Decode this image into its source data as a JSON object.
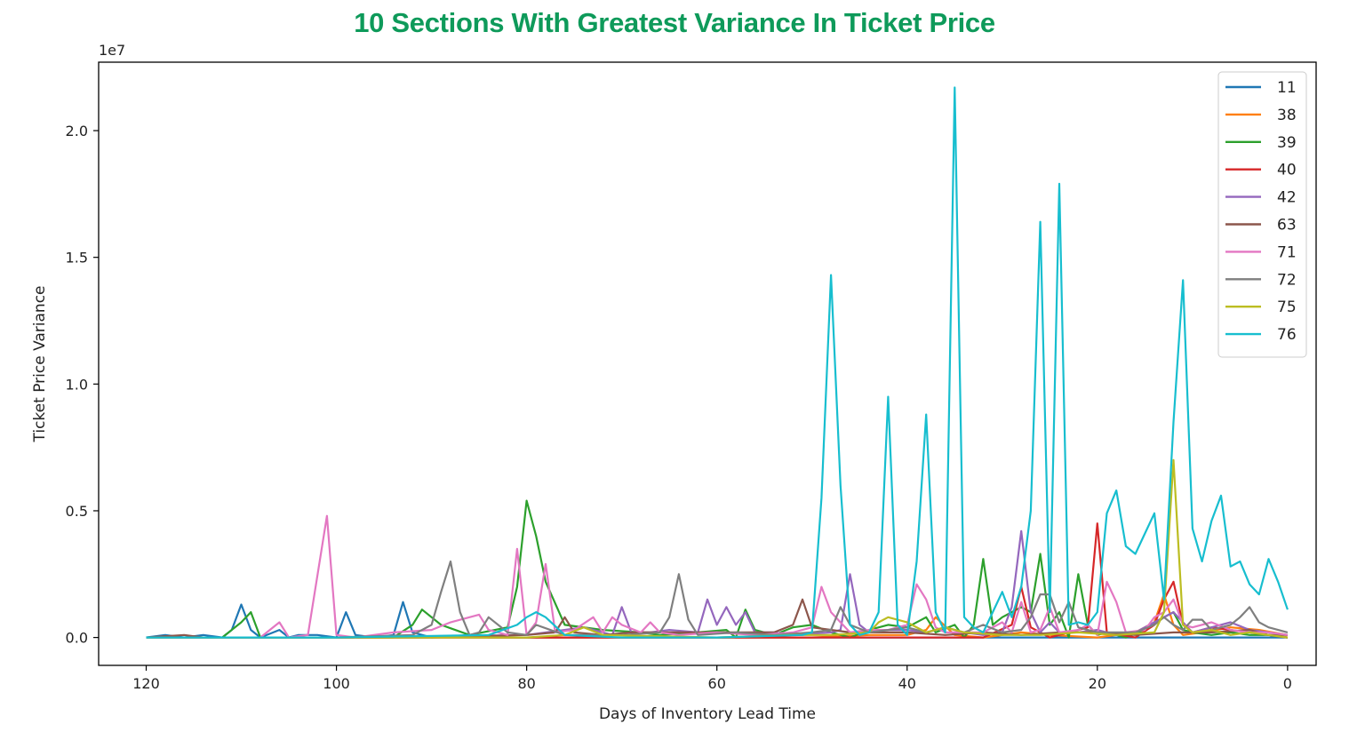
{
  "chart_data": {
    "type": "line",
    "title": "10 Sections With Greatest Variance In Ticket Price",
    "xlabel": "Days of Inventory Lead Time",
    "ylabel": "Ticket Price Variance",
    "y_offset_label": "1e7",
    "xlim": [
      125,
      -3
    ],
    "ylim": [
      -0.11,
      2.27
    ],
    "x_ticks": [
      120,
      100,
      80,
      60,
      40,
      20,
      0
    ],
    "x_tick_labels": [
      "120",
      "100",
      "80",
      "60",
      "40",
      "20",
      "0"
    ],
    "y_ticks": [
      0.0,
      0.5,
      1.0,
      1.5,
      2.0
    ],
    "y_tick_labels": [
      "0.0",
      "0.5",
      "1.0",
      "1.5",
      "2.0"
    ],
    "y_units": "1e7",
    "grid": false,
    "legend_position": "top-right",
    "series": [
      {
        "name": "11",
        "color": "#1f77b4",
        "x": [
          120,
          118,
          116,
          114,
          112,
          111,
          110,
          109,
          108,
          106,
          105,
          104,
          102,
          100,
          99,
          98,
          96,
          94,
          93,
          92,
          90,
          86,
          84,
          80,
          70,
          60,
          50,
          40,
          30,
          20,
          10,
          0
        ],
        "y": [
          0.0,
          0.01,
          0.0,
          0.01,
          0.0,
          0.03,
          0.13,
          0.03,
          0.0,
          0.03,
          0.0,
          0.01,
          0.01,
          0.0,
          0.1,
          0.01,
          0.0,
          0.01,
          0.14,
          0.02,
          0.0,
          0.01,
          0.0,
          0.0,
          0.0,
          0.0,
          0.0,
          0.0,
          0.0,
          0.0,
          0.0,
          0.0
        ]
      },
      {
        "name": "38",
        "color": "#ff7f0e",
        "x": [
          120,
          110,
          100,
          90,
          80,
          70,
          60,
          50,
          44,
          40,
          38,
          37,
          35,
          32,
          28,
          25,
          20,
          16,
          14,
          13,
          12,
          11,
          9,
          6,
          3,
          0
        ],
        "y": [
          0.0,
          0.0,
          0.0,
          0.0,
          0.0,
          0.0,
          0.0,
          0.0,
          0.01,
          0.01,
          0.03,
          0.08,
          0.01,
          0.0,
          0.02,
          0.01,
          0.0,
          0.02,
          0.06,
          0.17,
          0.05,
          0.01,
          0.02,
          0.04,
          0.03,
          0.01
        ]
      },
      {
        "name": "39",
        "color": "#2ca02c",
        "x": [
          120,
          112,
          110,
          109,
          108,
          100,
          94,
          92,
          91,
          89,
          86,
          82,
          81,
          80,
          79,
          78,
          76,
          72,
          68,
          66,
          62,
          59,
          58,
          57,
          56,
          54,
          52,
          50,
          48,
          46,
          44,
          42,
          40,
          38,
          37,
          35,
          34,
          33,
          32,
          31,
          30,
          29,
          28,
          27,
          26,
          25,
          24,
          23,
          22,
          21,
          20,
          19,
          17,
          15,
          14,
          13,
          12,
          11,
          10,
          8,
          6,
          4,
          2,
          0
        ],
        "y": [
          0.0,
          0.0,
          0.06,
          0.1,
          0.0,
          0.0,
          0.0,
          0.05,
          0.11,
          0.05,
          0.01,
          0.04,
          0.2,
          0.54,
          0.4,
          0.22,
          0.05,
          0.03,
          0.02,
          0.01,
          0.02,
          0.03,
          0.0,
          0.11,
          0.03,
          0.01,
          0.04,
          0.05,
          0.02,
          0.0,
          0.03,
          0.05,
          0.04,
          0.08,
          0.02,
          0.05,
          0.0,
          0.05,
          0.31,
          0.05,
          0.08,
          0.1,
          0.12,
          0.1,
          0.33,
          0.05,
          0.1,
          0.0,
          0.25,
          0.05,
          0.01,
          0.02,
          0.0,
          0.03,
          0.06,
          0.08,
          0.1,
          0.03,
          0.02,
          0.01,
          0.02,
          0.01,
          0.01,
          0.0
        ]
      },
      {
        "name": "40",
        "color": "#d62728",
        "x": [
          120,
          100,
          80,
          60,
          50,
          40,
          32,
          29,
          28,
          27,
          25,
          22,
          21,
          20,
          19,
          16,
          14,
          13,
          12,
          11,
          10,
          8,
          6,
          4,
          2,
          0
        ],
        "y": [
          0.0,
          0.0,
          0.0,
          0.0,
          0.0,
          0.0,
          0.0,
          0.05,
          0.2,
          0.04,
          0.0,
          0.03,
          0.04,
          0.45,
          0.02,
          0.0,
          0.05,
          0.15,
          0.22,
          0.05,
          0.02,
          0.04,
          0.03,
          0.02,
          0.01,
          0.0
        ]
      },
      {
        "name": "42",
        "color": "#9467bd",
        "x": [
          120,
          100,
          80,
          74,
          71,
          70,
          69,
          67,
          65,
          62,
          61,
          60,
          59,
          58,
          57,
          56,
          54,
          52,
          48,
          47,
          46,
          45,
          44,
          42,
          40,
          38,
          36,
          34,
          32,
          30,
          29,
          28,
          27,
          26,
          25,
          24,
          22,
          20,
          18,
          16,
          14,
          12,
          10,
          8,
          6,
          4,
          2,
          0
        ],
        "y": [
          0.0,
          0.0,
          0.01,
          0.04,
          0.01,
          0.12,
          0.02,
          0.02,
          0.03,
          0.02,
          0.15,
          0.05,
          0.12,
          0.05,
          0.1,
          0.02,
          0.02,
          0.01,
          0.02,
          0.03,
          0.25,
          0.05,
          0.02,
          0.03,
          0.03,
          0.02,
          0.04,
          0.02,
          0.01,
          0.02,
          0.12,
          0.42,
          0.1,
          0.02,
          0.06,
          0.02,
          0.02,
          0.03,
          0.01,
          0.02,
          0.06,
          0.1,
          0.02,
          0.04,
          0.06,
          0.03,
          0.02,
          0.01
        ]
      },
      {
        "name": "63",
        "color": "#8c564b",
        "x": [
          120,
          116,
          114,
          110,
          100,
          90,
          80,
          77,
          76,
          75,
          72,
          69,
          66,
          60,
          54,
          52,
          51,
          50,
          46,
          40,
          36,
          32,
          28,
          24,
          20,
          16,
          12,
          8,
          4,
          2,
          0
        ],
        "y": [
          0.0,
          0.01,
          0.0,
          0.0,
          0.0,
          0.0,
          0.01,
          0.02,
          0.08,
          0.02,
          0.01,
          0.02,
          0.02,
          0.02,
          0.02,
          0.05,
          0.15,
          0.04,
          0.02,
          0.02,
          0.01,
          0.02,
          0.01,
          0.02,
          0.02,
          0.01,
          0.02,
          0.02,
          0.03,
          0.01,
          0.01
        ]
      },
      {
        "name": "71",
        "color": "#e377c2",
        "x": [
          120,
          108,
          106,
          105,
          103,
          101,
          100,
          98,
          94,
          90,
          88,
          85,
          84,
          82,
          81,
          80,
          79,
          78,
          77,
          75,
          73,
          72,
          71,
          70,
          68,
          67,
          66,
          64,
          60,
          56,
          52,
          50,
          49,
          48,
          46,
          44,
          42,
          40,
          39,
          38,
          37,
          36,
          32,
          30,
          29,
          28,
          27,
          26,
          25,
          24,
          22,
          21,
          20,
          19,
          18,
          17,
          15,
          14,
          13,
          12,
          11,
          10,
          8,
          6,
          4,
          2,
          0
        ],
        "y": [
          0.0,
          0.0,
          0.06,
          0.0,
          0.01,
          0.48,
          0.01,
          0.0,
          0.02,
          0.03,
          0.06,
          0.09,
          0.03,
          0.01,
          0.35,
          0.01,
          0.06,
          0.29,
          0.02,
          0.03,
          0.08,
          0.02,
          0.08,
          0.05,
          0.02,
          0.06,
          0.02,
          0.01,
          0.02,
          0.01,
          0.02,
          0.04,
          0.2,
          0.1,
          0.02,
          0.03,
          0.03,
          0.05,
          0.21,
          0.15,
          0.04,
          0.02,
          0.02,
          0.06,
          0.02,
          0.14,
          0.02,
          0.03,
          0.12,
          0.02,
          0.03,
          0.05,
          0.01,
          0.22,
          0.14,
          0.02,
          0.03,
          0.08,
          0.1,
          0.15,
          0.05,
          0.04,
          0.06,
          0.03,
          0.02,
          0.02,
          0.01
        ]
      },
      {
        "name": "72",
        "color": "#7f7f7f",
        "x": [
          120,
          100,
          92,
          90,
          89,
          88,
          87,
          86,
          85,
          84,
          82,
          80,
          79,
          76,
          70,
          66,
          65,
          64,
          63,
          62,
          58,
          54,
          50,
          48,
          47,
          46,
          44,
          42,
          40,
          38,
          36,
          34,
          32,
          30,
          28,
          27,
          26,
          25,
          24,
          23,
          22,
          20,
          18,
          16,
          14,
          13,
          12,
          11,
          10,
          9,
          8,
          6,
          5,
          4,
          3,
          2,
          0
        ],
        "y": [
          0.0,
          0.0,
          0.01,
          0.05,
          0.18,
          0.3,
          0.1,
          0.01,
          0.02,
          0.08,
          0.02,
          0.01,
          0.05,
          0.01,
          0.01,
          0.02,
          0.08,
          0.25,
          0.07,
          0.01,
          0.02,
          0.01,
          0.02,
          0.03,
          0.12,
          0.05,
          0.02,
          0.03,
          0.04,
          0.02,
          0.04,
          0.02,
          0.05,
          0.02,
          0.03,
          0.08,
          0.17,
          0.17,
          0.06,
          0.14,
          0.04,
          0.02,
          0.02,
          0.02,
          0.05,
          0.08,
          0.05,
          0.03,
          0.07,
          0.07,
          0.03,
          0.05,
          0.08,
          0.12,
          0.06,
          0.04,
          0.02
        ]
      },
      {
        "name": "75",
        "color": "#bcbd22",
        "x": [
          120,
          100,
          80,
          76,
          74,
          72,
          60,
          52,
          48,
          44,
          43,
          42,
          40,
          38,
          36,
          34,
          30,
          26,
          22,
          18,
          14,
          13,
          12,
          11,
          10,
          8,
          6,
          4,
          2,
          0
        ],
        "y": [
          0.0,
          0.0,
          0.0,
          0.01,
          0.04,
          0.01,
          0.0,
          0.01,
          0.01,
          0.02,
          0.06,
          0.08,
          0.06,
          0.02,
          0.04,
          0.02,
          0.01,
          0.01,
          0.02,
          0.01,
          0.02,
          0.1,
          0.7,
          0.05,
          0.02,
          0.03,
          0.01,
          0.02,
          0.01,
          0.0
        ]
      },
      {
        "name": "76",
        "color": "#17becf",
        "x": [
          120,
          100,
          84,
          81,
          80,
          79,
          78,
          76,
          70,
          60,
          51,
          50,
          49,
          48,
          47,
          46,
          45,
          44,
          43,
          42,
          41,
          40,
          39,
          38,
          37,
          36,
          35,
          34,
          33,
          32,
          31,
          30,
          29,
          28,
          27,
          26,
          25,
          24,
          23,
          22,
          21,
          20,
          19,
          18,
          17,
          16,
          15,
          14,
          13,
          12,
          11,
          10,
          9,
          8,
          7,
          6,
          5,
          4,
          3,
          2,
          1,
          0
        ],
        "y": [
          0.0,
          0.0,
          0.01,
          0.05,
          0.08,
          0.1,
          0.08,
          0.01,
          0.0,
          0.0,
          0.01,
          0.02,
          0.55,
          1.43,
          0.6,
          0.05,
          0.01,
          0.02,
          0.1,
          0.95,
          0.05,
          0.01,
          0.3,
          0.88,
          0.1,
          0.02,
          2.17,
          0.08,
          0.04,
          0.02,
          0.1,
          0.18,
          0.08,
          0.2,
          0.5,
          1.64,
          0.1,
          1.79,
          0.05,
          0.06,
          0.05,
          0.1,
          0.49,
          0.58,
          0.36,
          0.33,
          0.41,
          0.49,
          0.15,
          0.85,
          1.41,
          0.43,
          0.3,
          0.46,
          0.56,
          0.28,
          0.3,
          0.21,
          0.17,
          0.31,
          0.22,
          0.11
        ]
      }
    ]
  }
}
